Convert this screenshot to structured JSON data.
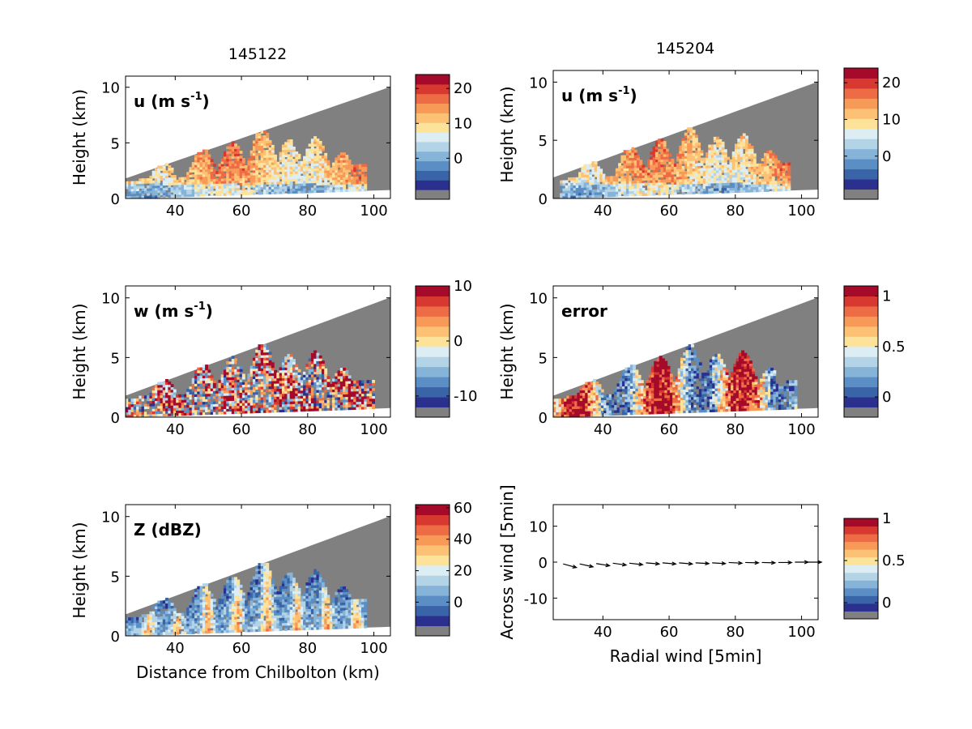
{
  "column_titles": [
    "145122",
    "145204"
  ],
  "colors": {
    "sky_gray": "#808080",
    "colormap": [
      "#2b2f8e",
      "#3a64a8",
      "#5a8ec4",
      "#86b3d8",
      "#b3d3e6",
      "#dcedf3",
      "#fde29a",
      "#fcc174",
      "#f79a58",
      "#ed6b45",
      "#d7382f",
      "#a50a2a"
    ]
  },
  "chart_data": [
    {
      "type": "heatmap",
      "panel": "u-145122",
      "inner_label_main": "u (m s",
      "inner_label_sup": "-1",
      "inner_label_end": ")",
      "ylabel": "Height (km)",
      "xlabel": "",
      "xlim": [
        25,
        105
      ],
      "ylim": [
        0,
        11
      ],
      "xticks": [
        "40",
        "60",
        "80",
        "100"
      ],
      "yticks": [
        "0",
        "5",
        "10"
      ],
      "colorbar": {
        "min": -9,
        "max": 24,
        "ticks": [
          "20",
          "10",
          "0"
        ],
        "tick_values": [
          20,
          10,
          0
        ]
      },
      "echo_extent_km": [
        25,
        97
      ],
      "max_echo_top_km": 6.3
    },
    {
      "type": "heatmap",
      "panel": "u-145204",
      "inner_label_main": "u (m s",
      "inner_label_sup": "-1",
      "inner_label_end": ")",
      "ylabel": "Height (km)",
      "xlabel": "",
      "xlim": [
        25,
        105
      ],
      "ylim": [
        0,
        11
      ],
      "xticks": [
        "40",
        "60",
        "80",
        "100"
      ],
      "yticks": [
        "0",
        "5",
        "10"
      ],
      "colorbar": {
        "min": -9,
        "max": 24,
        "ticks": [
          "20",
          "10",
          "0"
        ],
        "tick_values": [
          20,
          10,
          0
        ]
      },
      "echo_extent_km": [
        27,
        96
      ],
      "max_echo_top_km": 6.0
    },
    {
      "type": "heatmap",
      "panel": "w-145122",
      "inner_label_main": "w (m s",
      "inner_label_sup": "-1",
      "inner_label_end": ")",
      "ylabel": "Height (km)",
      "xlabel": "",
      "xlim": [
        25,
        105
      ],
      "ylim": [
        0,
        11
      ],
      "xticks": [
        "40",
        "60",
        "80",
        "100"
      ],
      "yticks": [
        "0",
        "5",
        "10"
      ],
      "colorbar": {
        "min": -12,
        "max": 10,
        "ticks": [
          "10",
          "0",
          "-10"
        ],
        "tick_values": [
          10,
          0,
          -10
        ]
      },
      "echo_extent_km": [
        25,
        100
      ],
      "max_echo_top_km": 6.2
    },
    {
      "type": "heatmap",
      "panel": "error-145204",
      "inner_label_main": "error",
      "inner_label_sup": "",
      "inner_label_end": "",
      "ylabel": "Height (km)",
      "xlabel": "",
      "xlim": [
        25,
        105
      ],
      "ylim": [
        0,
        11
      ],
      "xticks": [
        "40",
        "60",
        "80",
        "100"
      ],
      "yticks": [
        "0",
        "5",
        "10"
      ],
      "colorbar": {
        "min": -0.1,
        "max": 1.1,
        "ticks": [
          "1",
          "0.5",
          "0"
        ],
        "tick_values": [
          1,
          0.5,
          0
        ]
      },
      "echo_extent_km": [
        25,
        98
      ],
      "max_echo_top_km": 6.0
    },
    {
      "type": "heatmap",
      "panel": "Z-145122",
      "inner_label_main": "Z (dBZ)",
      "inner_label_sup": "",
      "inner_label_end": "",
      "ylabel": "Height (km)",
      "xlabel": "Distance from Chilbolton (km)",
      "xlim": [
        25,
        105
      ],
      "ylim": [
        0,
        11
      ],
      "xticks": [
        "40",
        "60",
        "80",
        "100"
      ],
      "yticks": [
        "0",
        "5",
        "10"
      ],
      "colorbar": {
        "min": -15,
        "max": 62,
        "ticks": [
          "60",
          "40",
          "20",
          "0"
        ],
        "tick_values": [
          60,
          40,
          20,
          0
        ]
      },
      "echo_extent_km": [
        25,
        97
      ],
      "max_echo_top_km": 6.4
    },
    {
      "type": "scatter",
      "panel": "quiver",
      "ylabel": "Across wind [5min]",
      "xlabel": "Radial wind [5min]",
      "xlim": [
        25,
        105
      ],
      "ylim": [
        -16,
        16
      ],
      "xticks": [
        "40",
        "60",
        "80",
        "100"
      ],
      "yticks": [
        "10",
        "0",
        "-10"
      ],
      "colorbar": {
        "min": -0.1,
        "max": 1.0,
        "ticks": [
          "1",
          "0.5",
          "0"
        ],
        "tick_values": [
          1,
          0.5,
          0
        ]
      },
      "arrows": {
        "x": [
          28,
          33,
          38,
          43,
          48,
          53,
          58,
          63,
          68,
          73,
          78,
          83,
          88,
          93,
          98,
          102
        ],
        "y": [
          -0.5,
          -0.5,
          -0.4,
          -0.3,
          -0.3,
          -0.2,
          -0.2,
          -0.2,
          -0.2,
          -0.2,
          -0.1,
          -0.1,
          -0.1,
          -0.1,
          0.0,
          0.0
        ],
        "u": [
          4,
          4,
          4,
          4,
          4,
          4,
          4,
          4,
          4,
          4,
          4,
          4,
          4,
          4,
          4,
          4
        ],
        "v": [
          -1.0,
          -0.8,
          -0.6,
          -0.5,
          -0.4,
          -0.3,
          -0.3,
          -0.3,
          -0.2,
          -0.2,
          -0.2,
          -0.1,
          -0.1,
          0.0,
          0.0,
          0.0
        ]
      }
    }
  ]
}
